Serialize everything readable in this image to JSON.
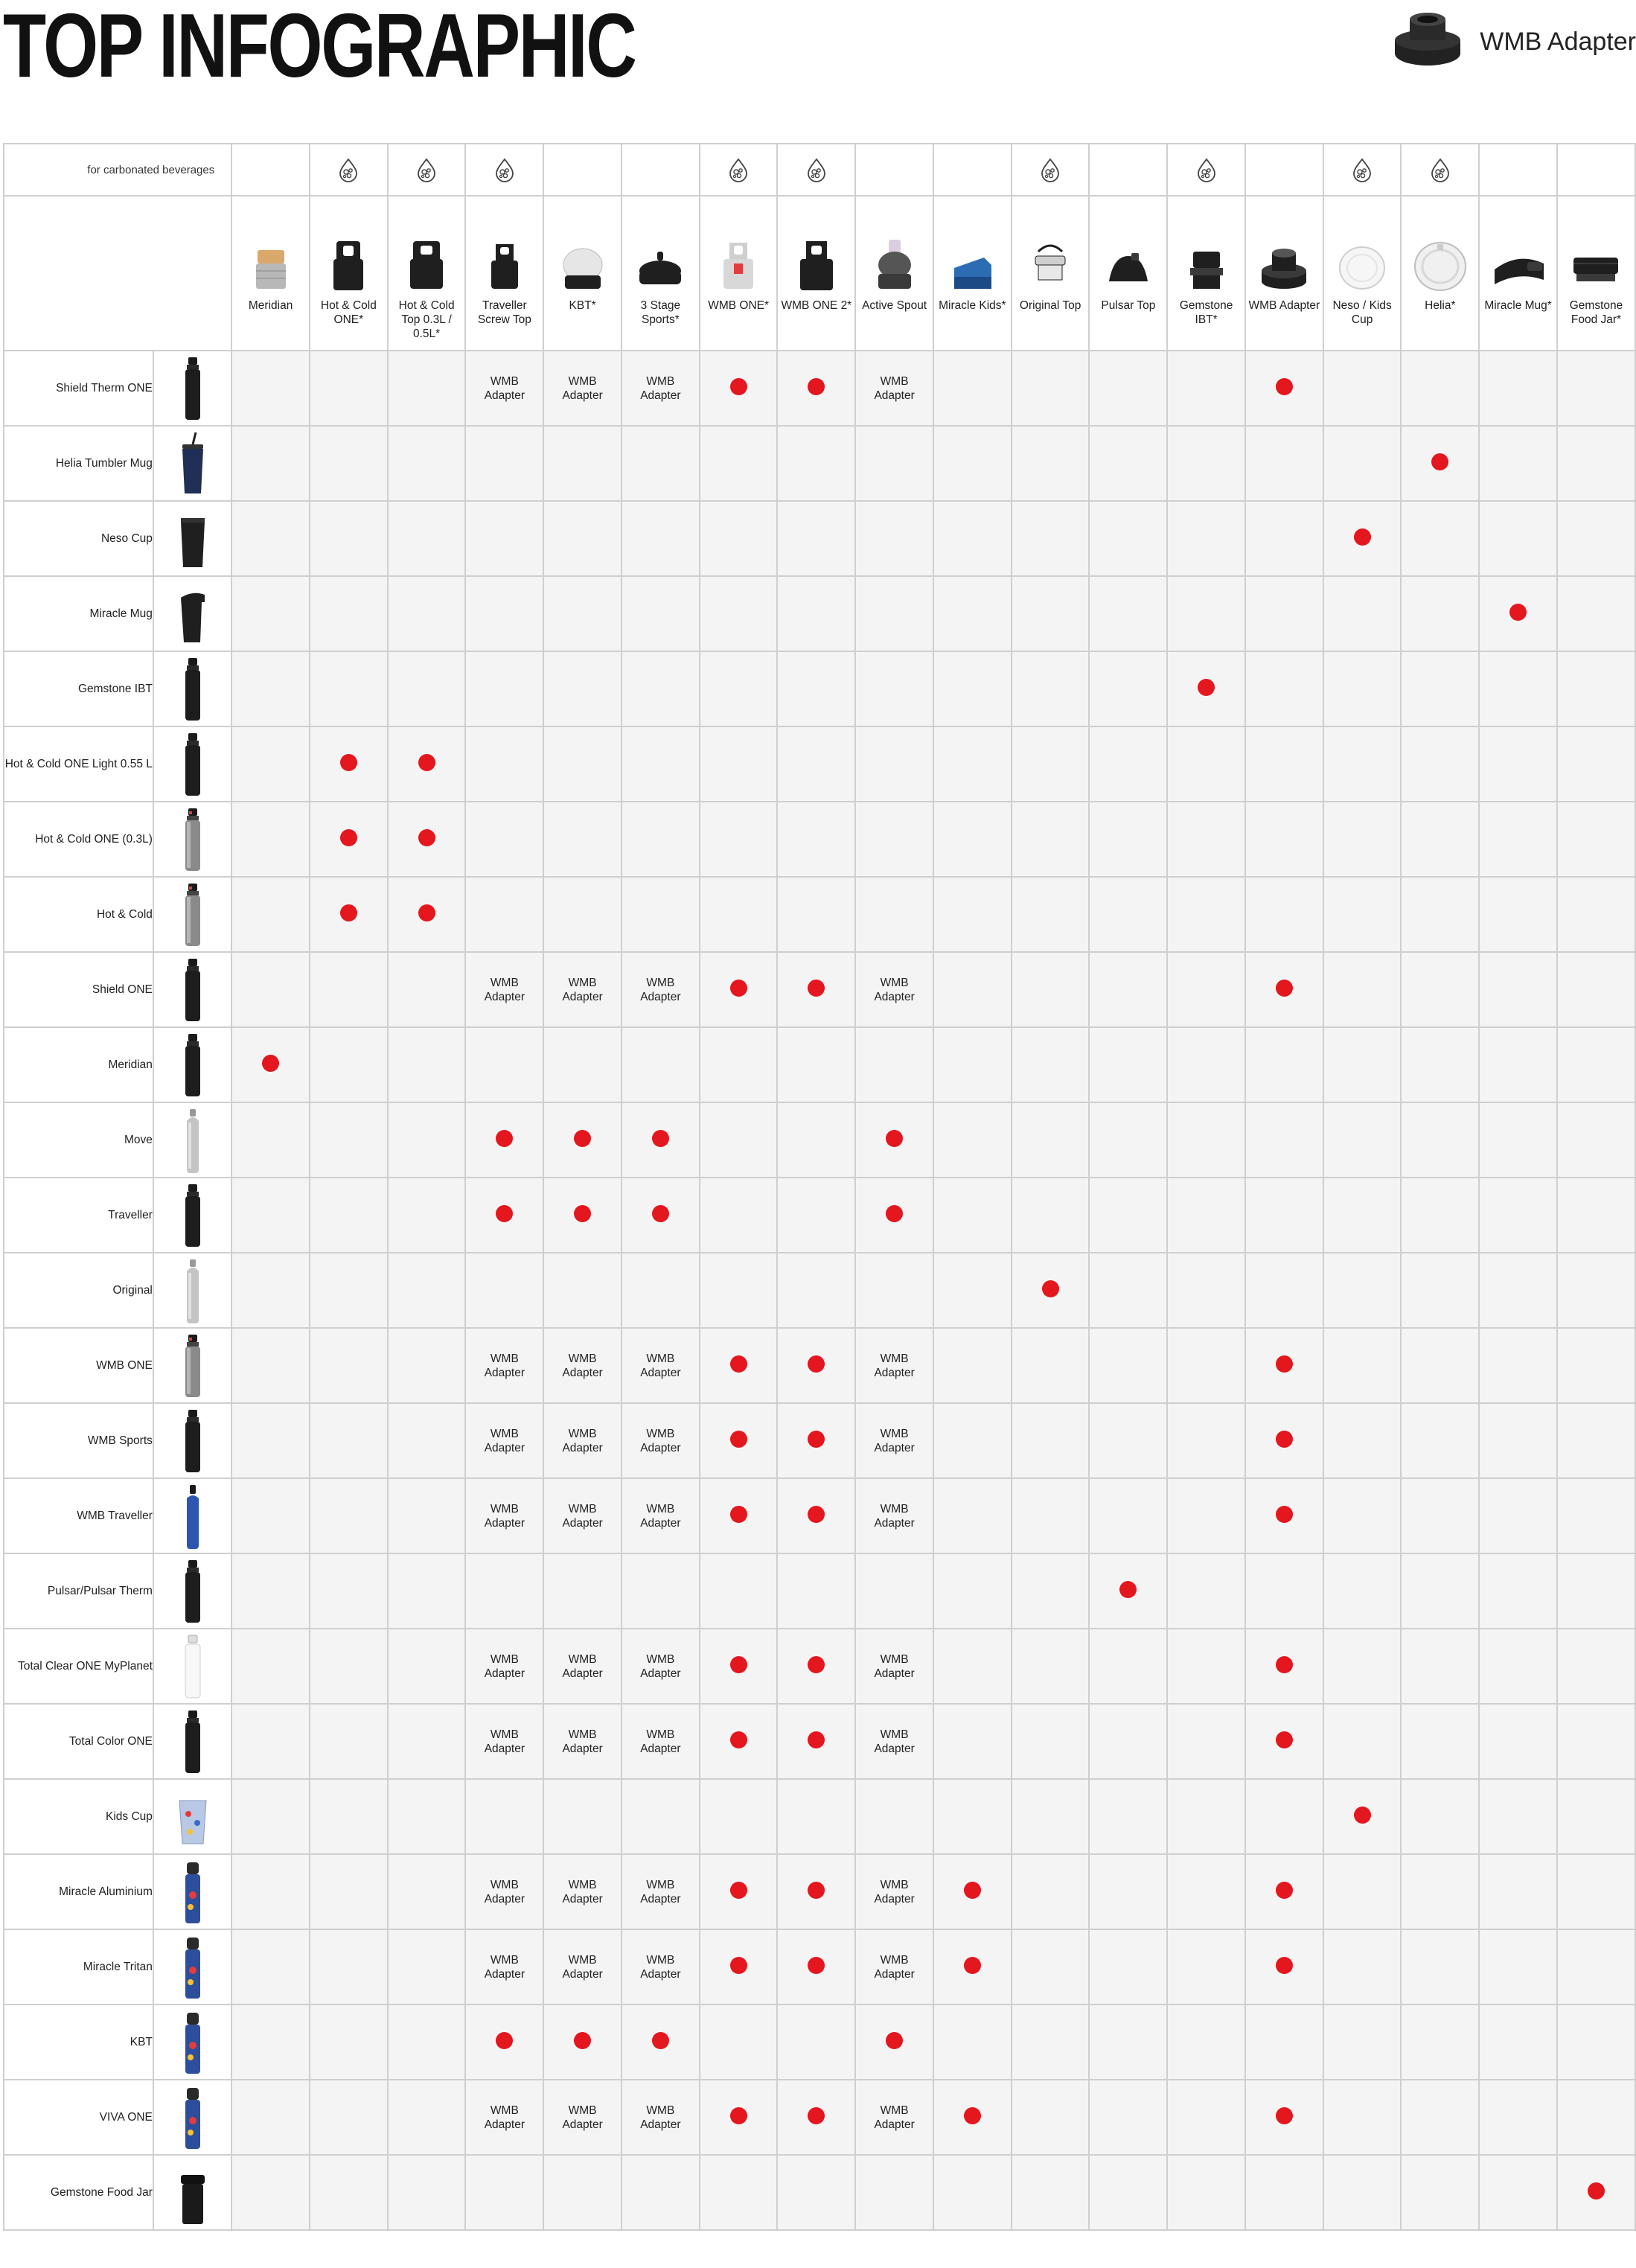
{
  "title": "TOP INFOGRAPHIC",
  "legend": {
    "label": "WMB Adapter",
    "icon": "wmb-adapter-icon"
  },
  "carbonated_label": "for carbonated beverages",
  "colors": {
    "dot": "#e4161e",
    "cell_bg": "#f4f4f4",
    "grid": "#cfcfcf"
  },
  "dot_meaning": "compatible",
  "tops": [
    {
      "label": "Meridian",
      "carbonated": false,
      "icon": "meridian-top"
    },
    {
      "label": "Hot & Cold ONE*",
      "carbonated": true,
      "icon": "hot-cold-one-top"
    },
    {
      "label": "Hot & Cold Top 0.3L / 0.5L*",
      "carbonated": true,
      "icon": "hot-cold-top"
    },
    {
      "label": "Traveller Screw Top",
      "carbonated": true,
      "icon": "traveller-screw-top"
    },
    {
      "label": "KBT*",
      "carbonated": false,
      "icon": "kbt-top"
    },
    {
      "label": "3 Stage Sports*",
      "carbonated": false,
      "icon": "three-stage-sports-top"
    },
    {
      "label": "WMB ONE*",
      "carbonated": true,
      "icon": "wmb-one-top"
    },
    {
      "label": "WMB ONE 2*",
      "carbonated": true,
      "icon": "wmb-one-2-top"
    },
    {
      "label": "Active Spout",
      "carbonated": false,
      "icon": "active-spout-top"
    },
    {
      "label": "Miracle Kids*",
      "carbonated": false,
      "icon": "miracle-kids-top"
    },
    {
      "label": "Original Top",
      "carbonated": true,
      "icon": "original-top"
    },
    {
      "label": "Pulsar Top",
      "carbonated": false,
      "icon": "pulsar-top"
    },
    {
      "label": "Gemstone IBT*",
      "carbonated": true,
      "icon": "gemstone-ibt-top"
    },
    {
      "label": "WMB Adapter",
      "carbonated": false,
      "icon": "wmb-adapter-top"
    },
    {
      "label": "Neso / Kids Cup",
      "carbonated": true,
      "icon": "neso-lid"
    },
    {
      "label": "Helia*",
      "carbonated": true,
      "icon": "helia-lid"
    },
    {
      "label": "Miracle Mug*",
      "carbonated": false,
      "icon": "miracle-mug-lid"
    },
    {
      "label": "Gemstone Food Jar*",
      "carbonated": false,
      "icon": "food-jar-lid"
    }
  ],
  "rows": [
    {
      "label": "Shield Therm ONE",
      "icon": "dark-bottle",
      "cells": [
        "",
        "",
        "",
        "A",
        "A",
        "A",
        "D",
        "D",
        "A",
        "",
        "",
        "",
        "",
        "D",
        "",
        "",
        "",
        ""
      ]
    },
    {
      "label": "Helia Tumbler Mug",
      "icon": "tumbler-mug",
      "cells": [
        "",
        "",
        "",
        "",
        "",
        "",
        "",
        "",
        "",
        "",
        "",
        "",
        "",
        "",
        "",
        "D",
        "",
        ""
      ]
    },
    {
      "label": "Neso Cup",
      "icon": "cup",
      "cells": [
        "",
        "",
        "",
        "",
        "",
        "",
        "",
        "",
        "",
        "",
        "",
        "",
        "",
        "",
        "D",
        "",
        "",
        ""
      ]
    },
    {
      "label": "Miracle Mug",
      "icon": "mug",
      "cells": [
        "",
        "",
        "",
        "",
        "",
        "",
        "",
        "",
        "",
        "",
        "",
        "",
        "",
        "",
        "",
        "",
        "D",
        ""
      ]
    },
    {
      "label": "Gemstone IBT",
      "icon": "dark-bottle",
      "cells": [
        "",
        "",
        "",
        "",
        "",
        "",
        "",
        "",
        "",
        "",
        "",
        "",
        "D",
        "",
        "",
        "",
        "",
        ""
      ]
    },
    {
      "label": "Hot & Cold ONE Light 0.55 L",
      "icon": "dark-bottle",
      "cells": [
        "",
        "D",
        "D",
        "",
        "",
        "",
        "",
        "",
        "",
        "",
        "",
        "",
        "",
        "",
        "",
        "",
        "",
        ""
      ]
    },
    {
      "label": "Hot & Cold ONE (0.3L)",
      "icon": "grey-bottle",
      "cells": [
        "",
        "D",
        "D",
        "",
        "",
        "",
        "",
        "",
        "",
        "",
        "",
        "",
        "",
        "",
        "",
        "",
        "",
        ""
      ]
    },
    {
      "label": "Hot & Cold",
      "icon": "grey-bottle",
      "cells": [
        "",
        "D",
        "D",
        "",
        "",
        "",
        "",
        "",
        "",
        "",
        "",
        "",
        "",
        "",
        "",
        "",
        "",
        ""
      ]
    },
    {
      "label": "Shield ONE",
      "icon": "dark-bottle",
      "cells": [
        "",
        "",
        "",
        "A",
        "A",
        "A",
        "D",
        "D",
        "A",
        "",
        "",
        "",
        "",
        "D",
        "",
        "",
        "",
        ""
      ]
    },
    {
      "label": "Meridian",
      "icon": "dark-bottle",
      "cells": [
        "D",
        "",
        "",
        "",
        "",
        "",
        "",
        "",
        "",
        "",
        "",
        "",
        "",
        "",
        "",
        "",
        "",
        ""
      ]
    },
    {
      "label": "Move",
      "icon": "silver-bottle",
      "cells": [
        "",
        "",
        "",
        "D",
        "D",
        "D",
        "",
        "",
        "D",
        "",
        "",
        "",
        "",
        "",
        "",
        "",
        "",
        ""
      ]
    },
    {
      "label": "Traveller",
      "icon": "dark-bottle",
      "cells": [
        "",
        "",
        "",
        "D",
        "D",
        "D",
        "",
        "",
        "D",
        "",
        "",
        "",
        "",
        "",
        "",
        "",
        "",
        ""
      ]
    },
    {
      "label": "Original",
      "icon": "silver-bottle",
      "cells": [
        "",
        "",
        "",
        "",
        "",
        "",
        "",
        "",
        "",
        "",
        "D",
        "",
        "",
        "",
        "",
        "",
        "",
        ""
      ]
    },
    {
      "label": "WMB ONE",
      "icon": "grey-bottle",
      "cells": [
        "",
        "",
        "",
        "A",
        "A",
        "A",
        "D",
        "D",
        "A",
        "",
        "",
        "",
        "",
        "D",
        "",
        "",
        "",
        ""
      ]
    },
    {
      "label": "WMB Sports",
      "icon": "dark-bottle",
      "cells": [
        "",
        "",
        "",
        "A",
        "A",
        "A",
        "D",
        "D",
        "A",
        "",
        "",
        "",
        "",
        "D",
        "",
        "",
        "",
        ""
      ]
    },
    {
      "label": "WMB Traveller",
      "icon": "blue-bottle",
      "cells": [
        "",
        "",
        "",
        "A",
        "A",
        "A",
        "D",
        "D",
        "A",
        "",
        "",
        "",
        "",
        "D",
        "",
        "",
        "",
        ""
      ]
    },
    {
      "label": "Pulsar/Pulsar Therm",
      "icon": "dark-bottle",
      "cells": [
        "",
        "",
        "",
        "",
        "",
        "",
        "",
        "",
        "",
        "",
        "",
        "D",
        "",
        "",
        "",
        "",
        "",
        ""
      ]
    },
    {
      "label": "Total Clear ONE MyPlanet",
      "icon": "clear-bottle",
      "cells": [
        "",
        "",
        "",
        "A",
        "A",
        "A",
        "D",
        "D",
        "A",
        "",
        "",
        "",
        "",
        "D",
        "",
        "",
        "",
        ""
      ]
    },
    {
      "label": "Total Color ONE",
      "icon": "dark-bottle",
      "cells": [
        "",
        "",
        "",
        "A",
        "A",
        "A",
        "D",
        "D",
        "A",
        "",
        "",
        "",
        "",
        "D",
        "",
        "",
        "",
        ""
      ]
    },
    {
      "label": "Kids Cup",
      "icon": "kids-cup",
      "cells": [
        "",
        "",
        "",
        "",
        "",
        "",
        "",
        "",
        "",
        "",
        "",
        "",
        "",
        "",
        "D",
        "",
        "",
        ""
      ]
    },
    {
      "label": "Miracle Aluminium",
      "icon": "kids-bottle",
      "cells": [
        "",
        "",
        "",
        "A",
        "A",
        "A",
        "D",
        "D",
        "A",
        "D",
        "",
        "",
        "",
        "D",
        "",
        "",
        "",
        ""
      ]
    },
    {
      "label": "Miracle Tritan",
      "icon": "kids-bottle",
      "cells": [
        "",
        "",
        "",
        "A",
        "A",
        "A",
        "D",
        "D",
        "A",
        "D",
        "",
        "",
        "",
        "D",
        "",
        "",
        "",
        ""
      ]
    },
    {
      "label": "KBT",
      "icon": "kids-bottle",
      "cells": [
        "",
        "",
        "",
        "D",
        "D",
        "D",
        "",
        "",
        "D",
        "",
        "",
        "",
        "",
        "",
        "",
        "",
        "",
        ""
      ]
    },
    {
      "label": "VIVA ONE",
      "icon": "kids-bottle",
      "cells": [
        "",
        "",
        "",
        "A",
        "A",
        "A",
        "D",
        "D",
        "A",
        "D",
        "",
        "",
        "",
        "D",
        "",
        "",
        "",
        ""
      ]
    },
    {
      "label": "Gemstone Food Jar",
      "icon": "food-jar",
      "cells": [
        "",
        "",
        "",
        "",
        "",
        "",
        "",
        "",
        "",
        "",
        "",
        "",
        "",
        "",
        "",
        "",
        "",
        "D"
      ]
    }
  ],
  "adapter_text": "WMB Adapter"
}
